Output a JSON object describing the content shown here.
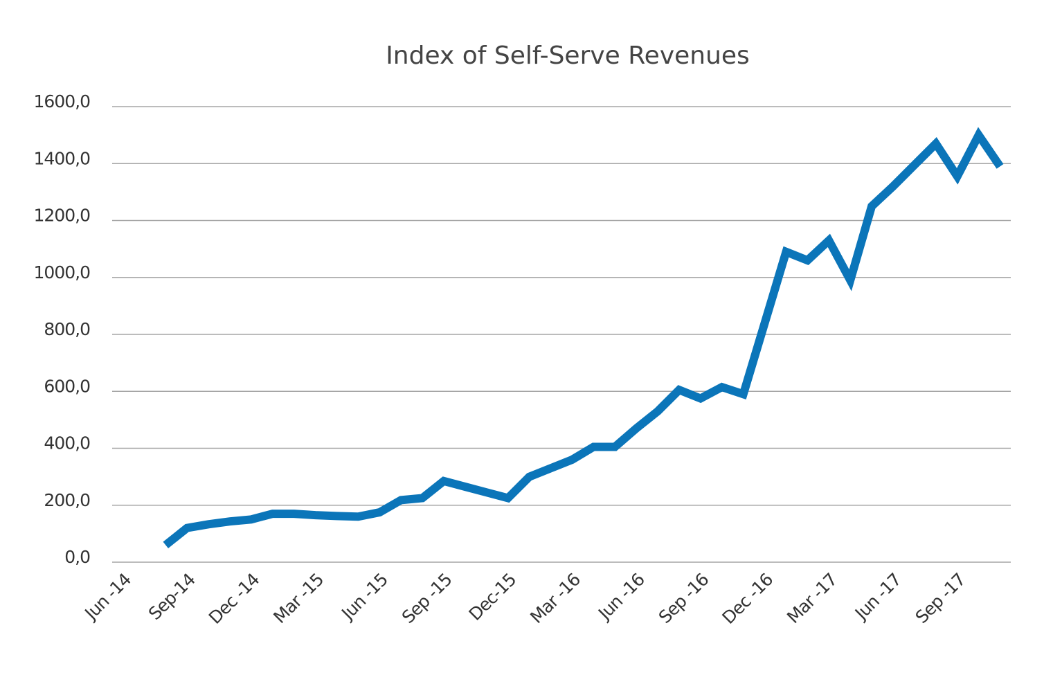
{
  "chart_data": {
    "type": "line",
    "title": "Index of Self-Serve Revenues",
    "categories": [
      "Jun -14",
      null,
      null,
      "Sep-14",
      null,
      null,
      "Dec -14",
      null,
      null,
      "Mar -15",
      null,
      null,
      "Jun -15",
      null,
      null,
      "Sep -15",
      null,
      null,
      "Dec-15",
      null,
      null,
      "Mar -16",
      null,
      null,
      "Jun -16",
      null,
      null,
      "Sep -16",
      null,
      null,
      "Dec -16",
      null,
      null,
      "Mar -17",
      null,
      null,
      "Jun -17",
      null,
      null,
      "Sep -17",
      null,
      null
    ],
    "series": [
      {
        "name": "Index",
        "color": "#0b75b9",
        "values": [
          null,
          null,
          60,
          120,
          133,
          143,
          150,
          170,
          170,
          165,
          162,
          160,
          175,
          218,
          225,
          285,
          265,
          245,
          225,
          300,
          330,
          360,
          405,
          405,
          470,
          530,
          605,
          575,
          615,
          590,
          840,
          1090,
          1060,
          1130,
          990,
          1250,
          1320,
          1395,
          1470,
          1355,
          1500,
          1390
        ]
      }
    ],
    "ylim": [
      0,
      1600
    ],
    "yticks": [
      {
        "value": 0,
        "label": "0,0"
      },
      {
        "value": 200,
        "label": "200,0"
      },
      {
        "value": 400,
        "label": "400,0"
      },
      {
        "value": 600,
        "label": "600,0"
      },
      {
        "value": 800,
        "label": "800,0"
      },
      {
        "value": 1000,
        "label": "1000,0"
      },
      {
        "value": 1200,
        "label": "1200,0"
      },
      {
        "value": 1400,
        "label": "1400,0"
      },
      {
        "value": 1600,
        "label": "1600,0"
      }
    ],
    "grid": true
  }
}
